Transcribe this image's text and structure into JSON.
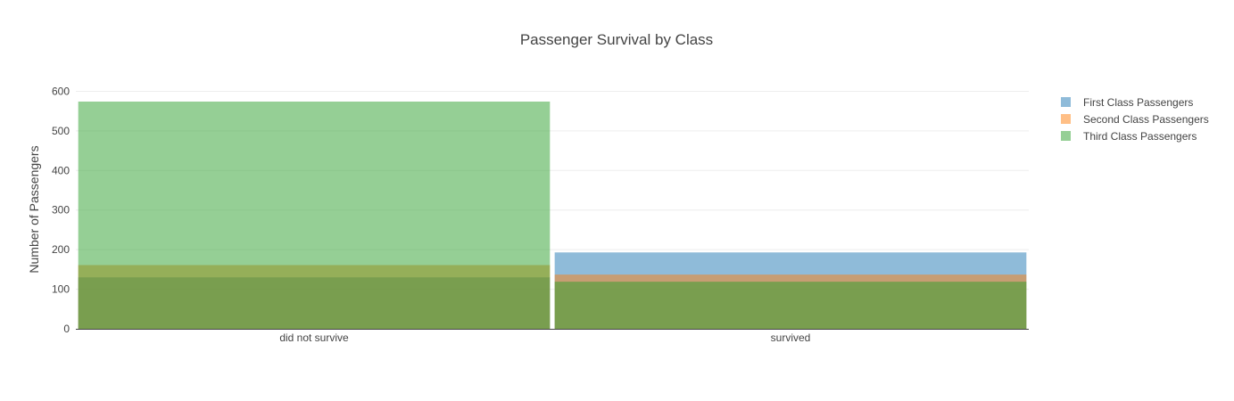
{
  "chart_data": {
    "type": "bar",
    "barmode": "overlay",
    "title": "Passenger Survival by Class",
    "xlabel": "",
    "ylabel": "Number of Passengers",
    "categories": [
      "did not survive",
      "survived"
    ],
    "ylim": [
      0,
      610
    ],
    "yticks": [
      0,
      100,
      200,
      300,
      400,
      500,
      600
    ],
    "grid": true,
    "legend_position": "top-right",
    "series": [
      {
        "name": "First Class Passengers",
        "values": [
          130,
          193
        ],
        "color": "#1f77b4"
      },
      {
        "name": "Second Class Passengers",
        "values": [
          161,
          137
        ],
        "color": "#ff7f0e"
      },
      {
        "name": "Third Class Passengers",
        "values": [
          574,
          119
        ],
        "color": "#2ca02c"
      }
    ]
  }
}
